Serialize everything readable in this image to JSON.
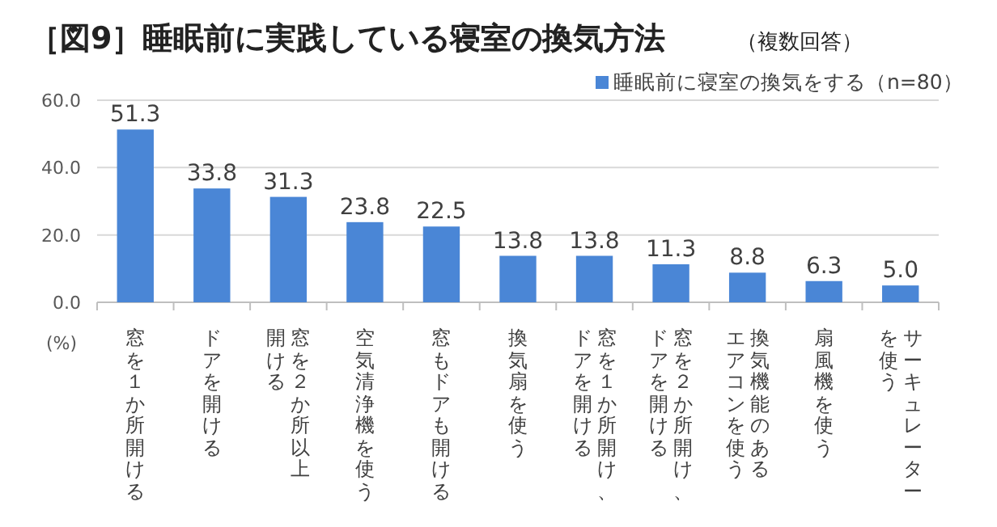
{
  "chart_data": {
    "type": "bar",
    "title": "［図9］睡眠前に実践している寝室の換気方法",
    "subtitle": "（複数回答）",
    "categories": [
      "窓を１か所開ける",
      "ドアを開ける",
      "窓を２か所以上開ける",
      "空気清浄機を使う",
      "窓もドアも開ける",
      "換気扇を使う",
      "窓を１か所開け、ドアを開ける",
      "窓を２か所開け、ドアを開ける",
      "換気機能のあるエアコンを使う",
      "扇風機を使う",
      "サーキュレーターを使う"
    ],
    "series": [
      {
        "name": "睡眠前に寝室の換気をする（n=80）",
        "color": "#4a86d6",
        "values": [
          51.3,
          33.8,
          31.3,
          23.8,
          22.5,
          13.8,
          13.8,
          11.3,
          8.8,
          6.3,
          5.0
        ],
        "value_labels": [
          "51.3",
          "33.8",
          "31.3",
          "23.8",
          "22.5",
          "13.8",
          "13.8",
          "11.3",
          "8.8",
          "6.3",
          "5.0"
        ]
      }
    ],
    "ylim": [
      0,
      60
    ],
    "yticks": [
      {
        "value": 0,
        "label": "0.0"
      },
      {
        "value": 20,
        "label": "20.0"
      },
      {
        "value": 40,
        "label": "40.0"
      },
      {
        "value": 60,
        "label": "60.0"
      }
    ],
    "ylabel": "(%)",
    "grid": "y",
    "legend": "top right"
  }
}
